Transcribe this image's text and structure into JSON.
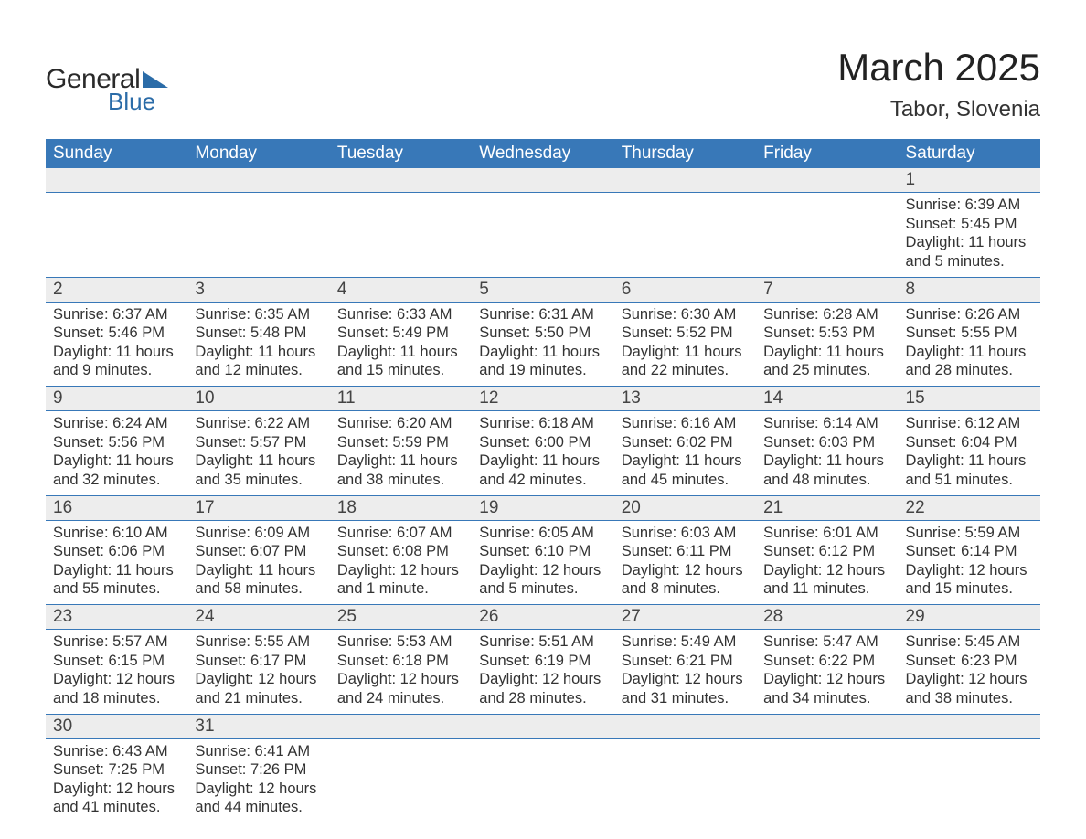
{
  "logo": {
    "word1": "General",
    "word2": "Blue"
  },
  "title": "March 2025",
  "location": "Tabor, Slovenia",
  "colors": {
    "header_bg": "#3878b8",
    "header_text": "#ffffff",
    "daynum_bg": "#ededed",
    "text": "#333333",
    "row_border": "#3878b8",
    "logo_blue": "#2b6ca8",
    "page_bg": "#ffffff"
  },
  "typography": {
    "title_fontsize": 42,
    "location_fontsize": 24,
    "weekday_fontsize": 19,
    "daynum_fontsize": 19,
    "cell_fontsize": 16.5,
    "font_family": "Arial"
  },
  "weekdays": [
    "Sunday",
    "Monday",
    "Tuesday",
    "Wednesday",
    "Thursday",
    "Friday",
    "Saturday"
  ],
  "weeks": [
    {
      "nums": [
        "",
        "",
        "",
        "",
        "",
        "",
        "1"
      ],
      "cells": [
        "",
        "",
        "",
        "",
        "",
        "",
        "Sunrise: 6:39 AM\nSunset: 5:45 PM\nDaylight: 11 hours and 5 minutes."
      ]
    },
    {
      "nums": [
        "2",
        "3",
        "4",
        "5",
        "6",
        "7",
        "8"
      ],
      "cells": [
        "Sunrise: 6:37 AM\nSunset: 5:46 PM\nDaylight: 11 hours and 9 minutes.",
        "Sunrise: 6:35 AM\nSunset: 5:48 PM\nDaylight: 11 hours and 12 minutes.",
        "Sunrise: 6:33 AM\nSunset: 5:49 PM\nDaylight: 11 hours and 15 minutes.",
        "Sunrise: 6:31 AM\nSunset: 5:50 PM\nDaylight: 11 hours and 19 minutes.",
        "Sunrise: 6:30 AM\nSunset: 5:52 PM\nDaylight: 11 hours and 22 minutes.",
        "Sunrise: 6:28 AM\nSunset: 5:53 PM\nDaylight: 11 hours and 25 minutes.",
        "Sunrise: 6:26 AM\nSunset: 5:55 PM\nDaylight: 11 hours and 28 minutes."
      ]
    },
    {
      "nums": [
        "9",
        "10",
        "11",
        "12",
        "13",
        "14",
        "15"
      ],
      "cells": [
        "Sunrise: 6:24 AM\nSunset: 5:56 PM\nDaylight: 11 hours and 32 minutes.",
        "Sunrise: 6:22 AM\nSunset: 5:57 PM\nDaylight: 11 hours and 35 minutes.",
        "Sunrise: 6:20 AM\nSunset: 5:59 PM\nDaylight: 11 hours and 38 minutes.",
        "Sunrise: 6:18 AM\nSunset: 6:00 PM\nDaylight: 11 hours and 42 minutes.",
        "Sunrise: 6:16 AM\nSunset: 6:02 PM\nDaylight: 11 hours and 45 minutes.",
        "Sunrise: 6:14 AM\nSunset: 6:03 PM\nDaylight: 11 hours and 48 minutes.",
        "Sunrise: 6:12 AM\nSunset: 6:04 PM\nDaylight: 11 hours and 51 minutes."
      ]
    },
    {
      "nums": [
        "16",
        "17",
        "18",
        "19",
        "20",
        "21",
        "22"
      ],
      "cells": [
        "Sunrise: 6:10 AM\nSunset: 6:06 PM\nDaylight: 11 hours and 55 minutes.",
        "Sunrise: 6:09 AM\nSunset: 6:07 PM\nDaylight: 11 hours and 58 minutes.",
        "Sunrise: 6:07 AM\nSunset: 6:08 PM\nDaylight: 12 hours and 1 minute.",
        "Sunrise: 6:05 AM\nSunset: 6:10 PM\nDaylight: 12 hours and 5 minutes.",
        "Sunrise: 6:03 AM\nSunset: 6:11 PM\nDaylight: 12 hours and 8 minutes.",
        "Sunrise: 6:01 AM\nSunset: 6:12 PM\nDaylight: 12 hours and 11 minutes.",
        "Sunrise: 5:59 AM\nSunset: 6:14 PM\nDaylight: 12 hours and 15 minutes."
      ]
    },
    {
      "nums": [
        "23",
        "24",
        "25",
        "26",
        "27",
        "28",
        "29"
      ],
      "cells": [
        "Sunrise: 5:57 AM\nSunset: 6:15 PM\nDaylight: 12 hours and 18 minutes.",
        "Sunrise: 5:55 AM\nSunset: 6:17 PM\nDaylight: 12 hours and 21 minutes.",
        "Sunrise: 5:53 AM\nSunset: 6:18 PM\nDaylight: 12 hours and 24 minutes.",
        "Sunrise: 5:51 AM\nSunset: 6:19 PM\nDaylight: 12 hours and 28 minutes.",
        "Sunrise: 5:49 AM\nSunset: 6:21 PM\nDaylight: 12 hours and 31 minutes.",
        "Sunrise: 5:47 AM\nSunset: 6:22 PM\nDaylight: 12 hours and 34 minutes.",
        "Sunrise: 5:45 AM\nSunset: 6:23 PM\nDaylight: 12 hours and 38 minutes."
      ]
    },
    {
      "nums": [
        "30",
        "31",
        "",
        "",
        "",
        "",
        ""
      ],
      "cells": [
        "Sunrise: 6:43 AM\nSunset: 7:25 PM\nDaylight: 12 hours and 41 minutes.",
        "Sunrise: 6:41 AM\nSunset: 7:26 PM\nDaylight: 12 hours and 44 minutes.",
        "",
        "",
        "",
        "",
        ""
      ]
    }
  ]
}
